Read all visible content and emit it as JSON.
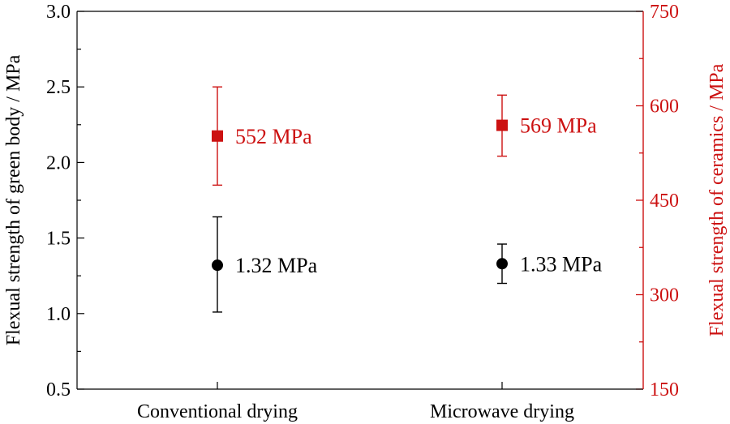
{
  "chart_data": {
    "type": "scatter",
    "categories": [
      "Conventional drying",
      "Microwave drying"
    ],
    "ylabel": "Flexual strength of green body / MPa",
    "y2label": "Flexual strength of ceramics / MPa",
    "ylim": [
      0.5,
      3.0
    ],
    "y2lim": [
      150,
      750
    ],
    "yticks": [
      "0.5",
      "1.0",
      "1.5",
      "2.0",
      "2.5",
      "3.0"
    ],
    "y2ticks": [
      "150",
      "300",
      "450",
      "600",
      "750"
    ],
    "grid": false,
    "series": [
      {
        "axis": "left",
        "marker": "circle",
        "color": "#000000",
        "values": [
          1.32,
          1.33
        ],
        "err_low": [
          1.01,
          1.2
        ],
        "err_high": [
          1.64,
          1.46
        ],
        "labels": [
          "1.32 MPa",
          "1.33 MPa"
        ]
      },
      {
        "axis": "right",
        "marker": "square",
        "color": "#cc1111",
        "values": [
          552,
          569
        ],
        "err_low": [
          474,
          520
        ],
        "err_high": [
          630,
          617
        ],
        "labels": [
          "552 MPa",
          "569 MPa"
        ]
      }
    ]
  }
}
